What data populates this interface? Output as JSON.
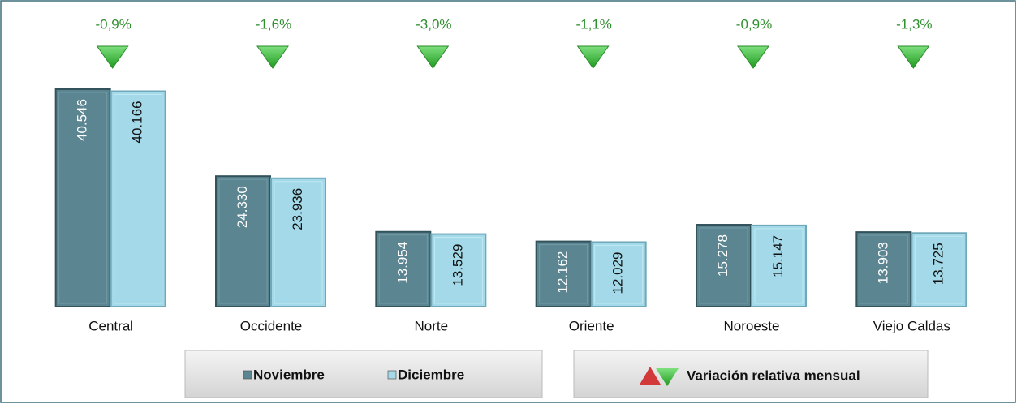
{
  "chart_data": {
    "type": "bar",
    "categories": [
      "Central",
      "Occidente",
      "Norte",
      "Oriente",
      "Noroeste",
      "Viejo Caldas"
    ],
    "series": [
      {
        "name": "Noviembre",
        "color": "#5b8591",
        "values": [
          40546,
          24330,
          13954,
          12162,
          15278,
          13903
        ],
        "value_labels": [
          "40.546",
          "24.330",
          "13.954",
          "12.162",
          "15.278",
          "13.903"
        ]
      },
      {
        "name": "Diciembre",
        "color": "#a3d9e8",
        "values": [
          40166,
          23936,
          13529,
          12029,
          15147,
          13725
        ],
        "value_labels": [
          "40.166",
          "23.936",
          "13.529",
          "12.029",
          "15.147",
          "13.725"
        ]
      }
    ],
    "variation": {
      "name": "Variación relativa mensual",
      "color": "#2f8f2f",
      "values": [
        -0.9,
        -1.6,
        -3.0,
        -1.1,
        -0.9,
        -1.3
      ],
      "value_labels": [
        "-0,9%",
        "-1,6%",
        "-3,0%",
        "-1,1%",
        "-0,9%",
        "-1,3%"
      ]
    },
    "ylim": [
      0,
      50000
    ]
  }
}
